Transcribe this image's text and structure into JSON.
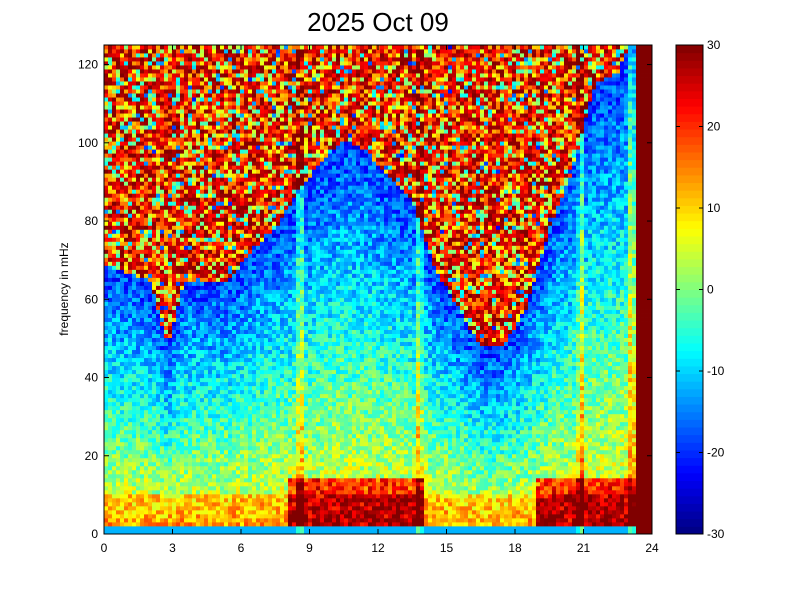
{
  "chart_data": {
    "type": "heatmap",
    "title": "2025 Oct 09",
    "xlabel": "",
    "ylabel": "frequency in mHz",
    "xlim": [
      0,
      24
    ],
    "ylim": [
      0,
      125
    ],
    "x_ticks": [
      "0",
      "3",
      "6",
      "9",
      "12",
      "15",
      "18",
      "21",
      "24"
    ],
    "y_ticks": [
      "0",
      "20",
      "40",
      "60",
      "80",
      "100",
      "120"
    ],
    "colorbar": {
      "range": [
        -30,
        30
      ],
      "ticks": [
        "-30",
        "-20",
        "-10",
        "0",
        "10",
        "20",
        "30"
      ],
      "colormap": "jet"
    },
    "grid": false,
    "features": {
      "noise_floor_top_hours": [
        [
          0,
          66
        ],
        [
          1,
          64
        ],
        [
          2,
          62
        ],
        [
          2.8,
          45
        ],
        [
          3.5,
          62
        ],
        [
          4.5,
          62
        ],
        [
          5.5,
          62
        ],
        [
          6.5,
          70
        ],
        [
          7.5,
          75
        ],
        [
          8.5,
          85
        ],
        [
          9.5,
          92
        ],
        [
          10.5,
          98
        ],
        [
          11.5,
          95
        ],
        [
          12.5,
          88
        ],
        [
          13.5,
          82
        ],
        [
          14.5,
          65
        ],
        [
          15.5,
          55
        ],
        [
          16.5,
          45
        ],
        [
          17.5,
          45
        ],
        [
          18.5,
          55
        ],
        [
          19.5,
          75
        ],
        [
          20.5,
          90
        ],
        [
          21.5,
          112
        ],
        [
          22.5,
          115
        ],
        [
          23.2,
          125
        ],
        [
          24,
          125
        ]
      ],
      "vertical_streaks_hours": [
        8.6,
        13.8,
        20.9,
        23.1
      ],
      "low_frequency_peak_hours": [
        [
          8,
          12
        ],
        [
          12,
          14
        ],
        [
          19,
          24
        ]
      ]
    }
  }
}
